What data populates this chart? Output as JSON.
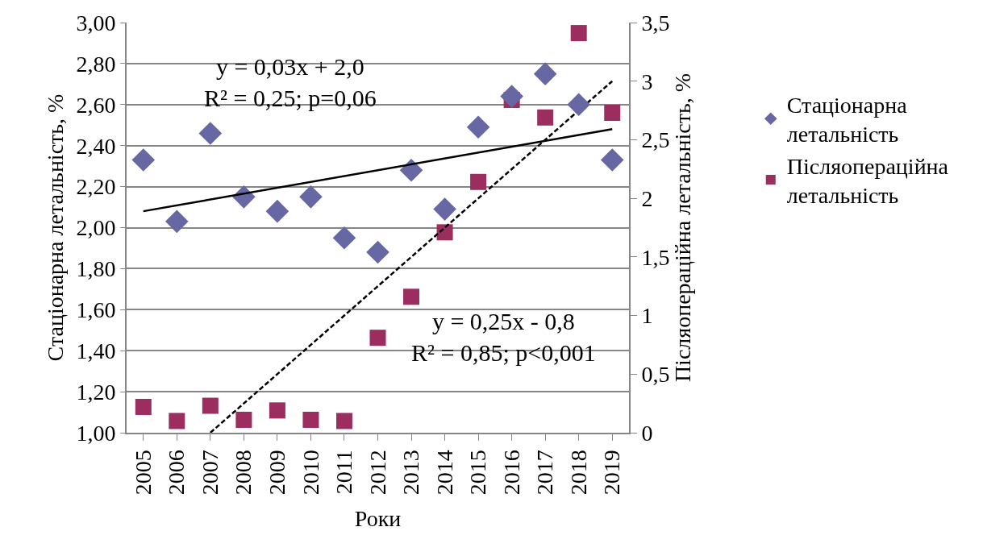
{
  "chart_data": {
    "type": "scatter",
    "x": [
      2005,
      2006,
      2007,
      2008,
      2009,
      2010,
      2011,
      2012,
      2013,
      2014,
      2015,
      2016,
      2017,
      2018,
      2019
    ],
    "xlabel": "Роки",
    "ylabel": "Стаціонарна летальність, %",
    "y2label": "Післяопераційна летальність, %",
    "xlim": [
      2004.5,
      2019.5
    ],
    "xticks": [
      2005,
      2006,
      2007,
      2008,
      2009,
      2010,
      2011,
      2012,
      2013,
      2014,
      2015,
      2016,
      2017,
      2018,
      2019
    ],
    "ylim": [
      1,
      3
    ],
    "yticks": [
      {
        "value": 1,
        "label": "1,00"
      },
      {
        "value": 1.2,
        "label": "1,20"
      },
      {
        "value": 1.4,
        "label": "1,40"
      },
      {
        "value": 1.6,
        "label": "1,60"
      },
      {
        "value": 1.8,
        "label": "1,80"
      },
      {
        "value": 2,
        "label": "2,00"
      },
      {
        "value": 2.2,
        "label": "2,20"
      },
      {
        "value": 2.4,
        "label": "2,40"
      },
      {
        "value": 2.6,
        "label": "2,60"
      },
      {
        "value": 2.8,
        "label": "2,80"
      },
      {
        "value": 3,
        "label": "3,00"
      }
    ],
    "y2lim": [
      0,
      3.5
    ],
    "y2ticks": [
      0,
      {
        "value": 0.5,
        "label": "0,5"
      },
      1,
      {
        "value": 1.5,
        "label": "1,5"
      },
      2,
      {
        "value": 2.5,
        "label": "2,5"
      },
      3,
      {
        "value": 3.5,
        "label": "3,5"
      }
    ],
    "grid": "y",
    "legend": "right",
    "series": [
      {
        "name": "Стаціонарна летальність",
        "color": "#6667a3",
        "marker": "diamond",
        "values": [
          2.33,
          2.03,
          2.46,
          2.15,
          2.08,
          2.15,
          1.95,
          1.88,
          2.28,
          2.09,
          2.49,
          2.64,
          2.75,
          2.6,
          2.33
        ]
      },
      {
        "name": "Післяопераційна летальність",
        "color": "#9b2d5f",
        "marker": "square",
        "axis": "y2",
        "values": [
          0.22,
          0.1,
          0.23,
          0.11,
          0.19,
          0.11,
          0.1,
          0.81,
          1.16,
          1.71,
          2.14,
          2.84,
          2.69,
          3.41,
          2.73
        ]
      },
      {
        "type": "line",
        "color": "#000000",
        "line_style": "solid",
        "x": [
          2005,
          2019
        ],
        "values": [
          2.08,
          2.48
        ]
      },
      {
        "type": "line",
        "color": "#000000",
        "line_style": "dashed",
        "axis": "y2",
        "x": [
          2007,
          2019
        ],
        "values": [
          0,
          3.0
        ]
      }
    ],
    "annotations": [
      "y = 0,03x + 2,0\nR² = 0,25; p=0,06",
      "y = 0,25x - 0,8\nR² = 0,85; p<0,001"
    ]
  }
}
